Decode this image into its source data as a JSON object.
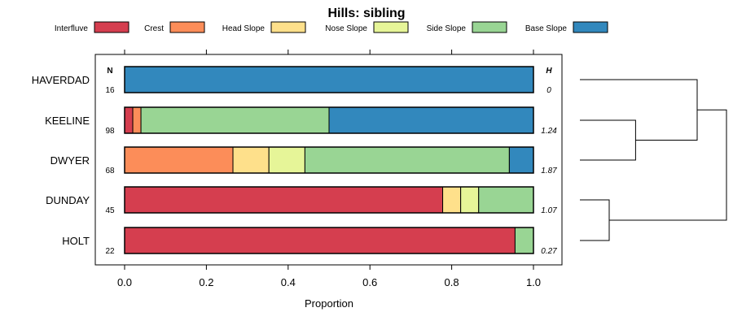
{
  "chart_data": {
    "type": "bar",
    "orientation": "horizontal",
    "stacked": true,
    "title": "Hills: sibling",
    "xlabel": "Proportion",
    "ylabel": "",
    "xlim": [
      -0.07,
      1.07
    ],
    "xticks": [
      0.0,
      0.2,
      0.4,
      0.6,
      0.8,
      1.0
    ],
    "xtick_labels": [
      "0.0",
      "0.2",
      "0.4",
      "0.6",
      "0.8",
      "1.0"
    ],
    "legend_position": "top",
    "n_header": "N",
    "h_header": "H",
    "segments": [
      {
        "name": "Interfluve",
        "color": "#D53E4F"
      },
      {
        "name": "Crest",
        "color": "#FC8D59"
      },
      {
        "name": "Head Slope",
        "color": "#FEE08B"
      },
      {
        "name": "Nose Slope",
        "color": "#E6F598"
      },
      {
        "name": "Side Slope",
        "color": "#99D594"
      },
      {
        "name": "Base Slope",
        "color": "#3288BD"
      }
    ],
    "rows": [
      {
        "label": "HAVERDAD",
        "n": "16",
        "h": "0",
        "values": [
          0,
          0,
          0,
          0,
          0,
          1.0
        ]
      },
      {
        "label": "KEELINE",
        "n": "98",
        "h": "1.24",
        "values": [
          0.02,
          0.02,
          0,
          0,
          0.46,
          0.5
        ]
      },
      {
        "label": "DWYER",
        "n": "68",
        "h": "1.87",
        "values": [
          0,
          0.265,
          0.088,
          0.088,
          0.5,
          0.059
        ]
      },
      {
        "label": "DUNDAY",
        "n": "45",
        "h": "1.07",
        "values": [
          0.778,
          0,
          0.044,
          0.044,
          0.134,
          0
        ]
      },
      {
        "label": "HOLT",
        "n": "22",
        "h": "0.27",
        "values": [
          0.955,
          0,
          0,
          0,
          0.045,
          0
        ]
      }
    ],
    "dendrogram": {
      "merges": [
        {
          "left": "DUNDAY",
          "right": "HOLT",
          "height": 0.2
        },
        {
          "left": "KEELINE",
          "right": "DWYER",
          "height": 0.38
        },
        {
          "left": "HAVERDAD",
          "right": "KEELINE+DWYER",
          "height": 0.8
        },
        {
          "left": "HAVERDAD+KEELINE+DWYER",
          "right": "DUNDAY+HOLT",
          "height": 1.0
        }
      ]
    }
  }
}
